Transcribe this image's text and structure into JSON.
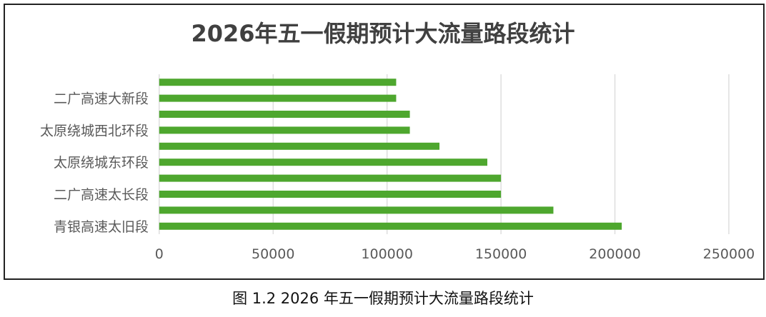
{
  "chart_data": {
    "type": "bar",
    "orientation": "horizontal",
    "title": "2026年五一假期预计大流量路段统计",
    "categories": [
      "",
      "二广高速大新段",
      "",
      "太原绕城西北环段",
      "",
      "太原绕城东环段",
      "",
      "二广高速太长段",
      "",
      "青银高速太旧段"
    ],
    "values": [
      104000,
      104000,
      110000,
      110000,
      123000,
      144000,
      150000,
      150000,
      173000,
      203000
    ],
    "xlim": [
      0,
      250000
    ],
    "xticks": [
      "0",
      "50000",
      "100000",
      "150000",
      "200000",
      "250000"
    ],
    "grid": true,
    "bar_color": "#4ea72e",
    "xlabel": "",
    "ylabel": ""
  },
  "caption": "图 1.2 2026 年五一假期预计大流量路段统计"
}
